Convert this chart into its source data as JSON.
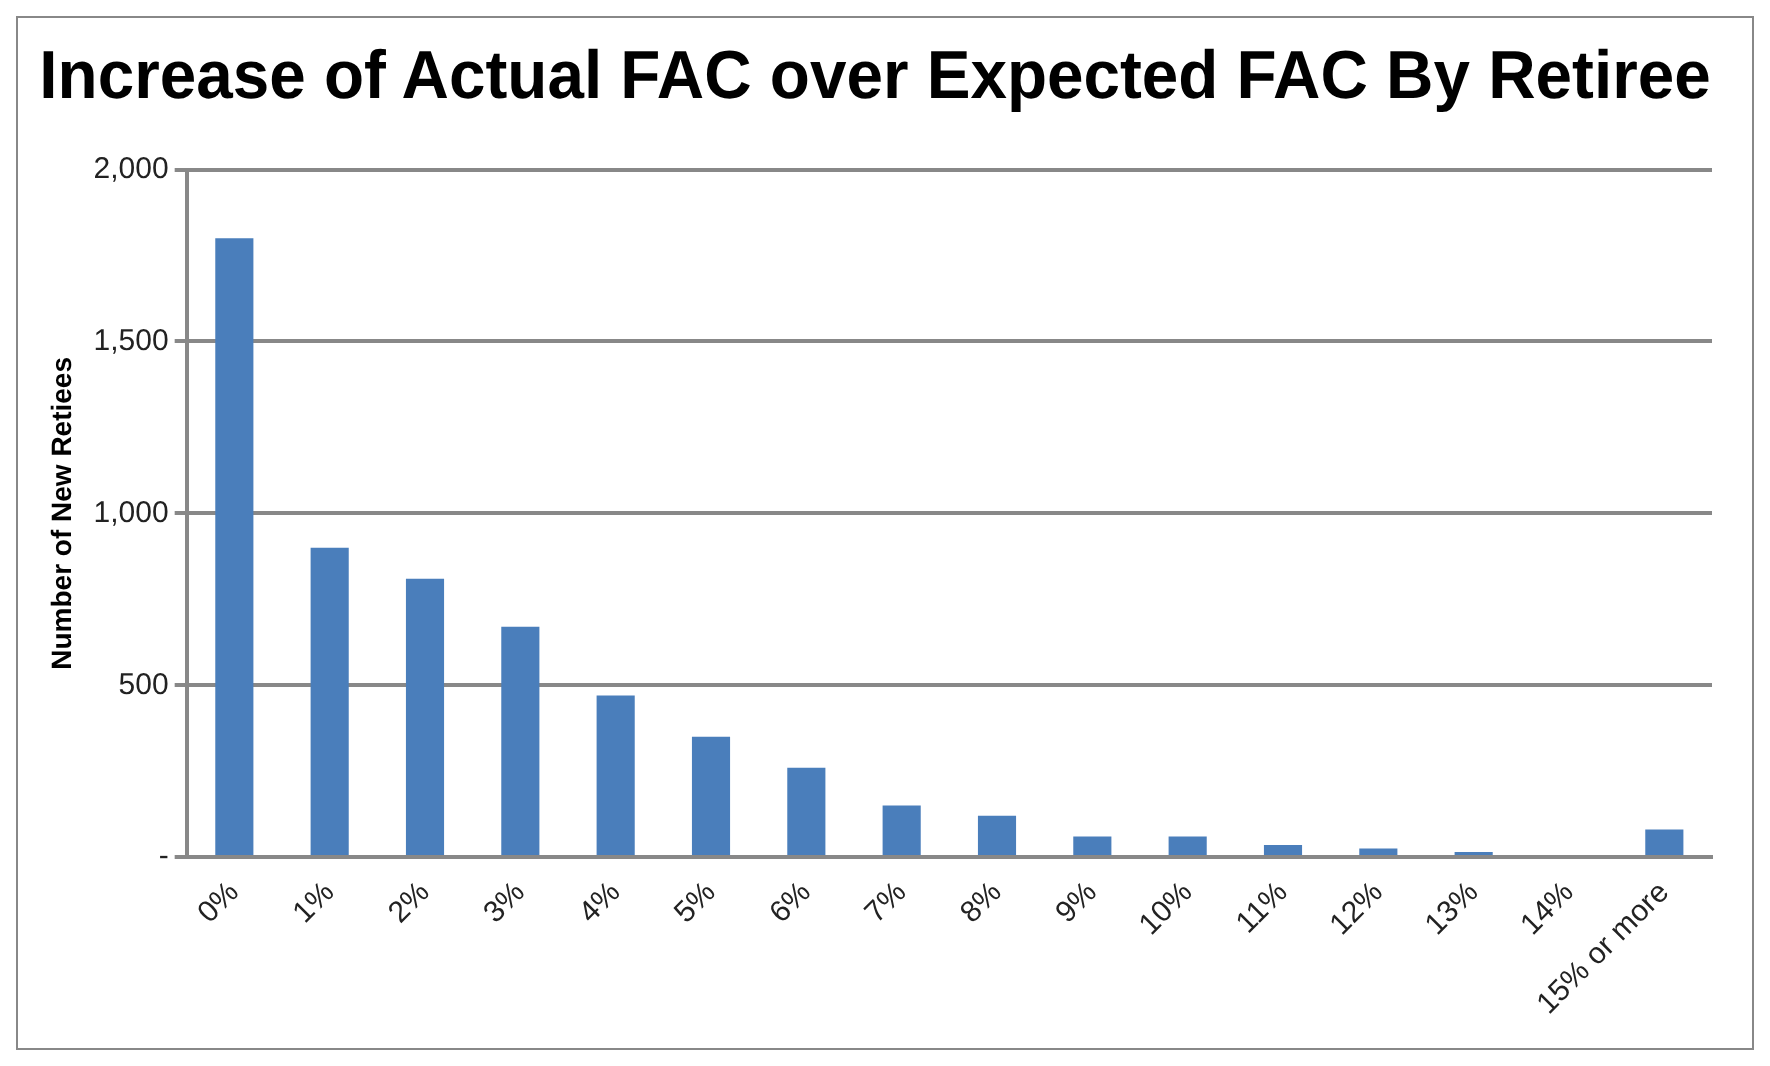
{
  "chart_data": {
    "type": "bar",
    "title": "Increase of Actual FAC over Expected FAC By Retiree",
    "ylabel": "Number of New Retiees",
    "categories": [
      "0%",
      "1%",
      "2%",
      "3%",
      "4%",
      "5%",
      "6%",
      "7%",
      "8%",
      "9%",
      "10%",
      "11%",
      "12%",
      "13%",
      "14%",
      "15% or more"
    ],
    "values": [
      1800,
      900,
      810,
      670,
      470,
      350,
      260,
      150,
      120,
      60,
      60,
      35,
      25,
      15,
      0,
      80
    ],
    "color": "#4a7ebb",
    "ylim": [
      0,
      2000
    ],
    "yticks": [
      {
        "value": 0,
        "label": "-"
      },
      {
        "value": 500,
        "label": "500"
      },
      {
        "value": 1000,
        "label": "1,000"
      },
      {
        "value": 1500,
        "label": "1,500"
      },
      {
        "value": 2000,
        "label": "2,000"
      }
    ],
    "grid": "y"
  }
}
